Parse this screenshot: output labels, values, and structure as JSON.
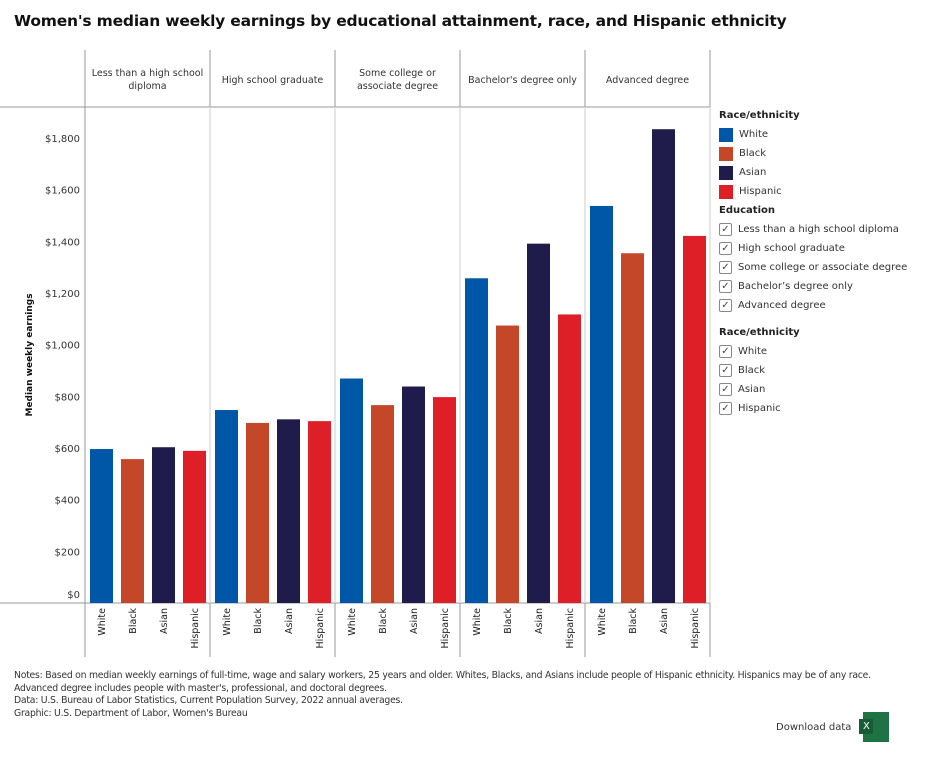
{
  "chart_data": {
    "type": "bar",
    "title": "Women's median weekly earnings by educational attainment, race, and Hispanic ethnicity",
    "ylabel": "Median weekly earnings",
    "xlabel": "",
    "ylim": [
      0,
      1920
    ],
    "yticks": [
      0,
      200,
      400,
      600,
      800,
      1000,
      1200,
      1400,
      1600,
      1800
    ],
    "ytick_labels": [
      "$0",
      "$200",
      "$400",
      "$600",
      "$800",
      "$1,000",
      "$1,200",
      "$1,400",
      "$1,600",
      "$1,800"
    ],
    "grid": false,
    "legend_position": "right",
    "groups": [
      "Less than a high school diploma",
      "High school graduate",
      "Some college or associate degree",
      "Bachelor's degree only",
      "Advanced degree"
    ],
    "group_labels": [
      [
        "Less than a high school",
        "diploma"
      ],
      [
        "High school graduate"
      ],
      [
        "Some college or",
        "associate degree"
      ],
      [
        "Bachelor's degree only"
      ],
      [
        "Advanced degree"
      ]
    ],
    "categories": [
      "White",
      "Black",
      "Asian",
      "Hispanic"
    ],
    "series": [
      {
        "name": "Less than a high school diploma",
        "values": [
          596,
          557,
          603,
          589
        ]
      },
      {
        "name": "High school graduate",
        "values": [
          747,
          697,
          711,
          704
        ]
      },
      {
        "name": "Some college or associate degree",
        "values": [
          869,
          766,
          838,
          797
        ]
      },
      {
        "name": "Bachelor's degree only",
        "values": [
          1257,
          1074,
          1391,
          1117
        ]
      },
      {
        "name": "Advanced degree",
        "values": [
          1537,
          1354,
          1834,
          1421
        ]
      }
    ],
    "colors": {
      "White": "#0057a8",
      "Black": "#c4472a",
      "Asian": "#1f1c4c",
      "Hispanic": "#de1f27"
    }
  },
  "legend": {
    "race_title": "Race/ethnicity",
    "race_items": [
      "White",
      "Black",
      "Asian",
      "Hispanic"
    ],
    "education_title": "Education",
    "education_items": [
      "Less than a high school diploma",
      "High school graduate",
      "Some college or associate degree",
      "Bachelor’s degree only",
      "Advanced degree"
    ],
    "filter_title": "Race/ethnicity",
    "filter_items": [
      "White",
      "Black",
      "Asian",
      "Hispanic"
    ],
    "check": "✓"
  },
  "notes": {
    "line1": "Notes: Based on median weekly earnings of full-time, wage and salary workers, 25 years and older. Whites, Blacks, and Asians include people of Hispanic ethnicity. Hispanics may be of any race.",
    "line2": "Advanced degree includes people with master's, professional, and doctoral degrees.",
    "line3": "Data: U.S. Bureau of Labor Statistics, Current Population Survey, 2022 annual averages.",
    "line4": "Graphic: U.S. Department of Labor, Women's Bureau"
  },
  "download": {
    "label": "Download data",
    "icon": "excel-icon",
    "icon_letter": "X"
  }
}
